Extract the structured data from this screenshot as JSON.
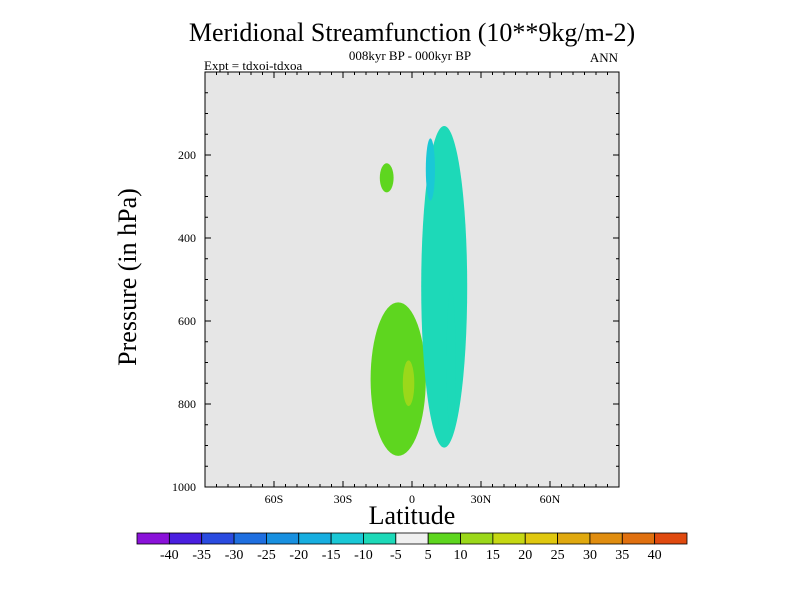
{
  "chart_data": {
    "type": "contour",
    "title": "Meridional Streamfunction (10**9kg/m-2)",
    "subtitle_center": "008kyr BP - 000kyr BP",
    "subtitle_left": "Expt = tdxoi-tdxoa",
    "subtitle_right": "ANN",
    "xlabel": "Latitude",
    "ylabel": "Pressure (in hPa)",
    "xlim": [
      -90,
      90
    ],
    "ylim": [
      1000,
      0
    ],
    "x_ticks": [
      {
        "value": -60,
        "label": "60S"
      },
      {
        "value": -30,
        "label": "30S"
      },
      {
        "value": 0,
        "label": "0"
      },
      {
        "value": 30,
        "label": "30N"
      },
      {
        "value": 60,
        "label": "60N"
      }
    ],
    "y_ticks": [
      {
        "value": 200,
        "label": "200"
      },
      {
        "value": 400,
        "label": "400"
      },
      {
        "value": 600,
        "label": "600"
      },
      {
        "value": 800,
        "label": "800"
      },
      {
        "value": 1000,
        "label": "1000"
      }
    ],
    "background_color": "#e6e6e6",
    "colorbar": {
      "labels": [
        "-40",
        "-35",
        "-30",
        "-25",
        "-20",
        "-15",
        "-10",
        "-5",
        "5",
        "10",
        "15",
        "20",
        "25",
        "30",
        "35",
        "40"
      ],
      "colors": [
        "#8a12d9",
        "#4a1fe0",
        "#2a4be0",
        "#1f6fe0",
        "#1890e0",
        "#17aee0",
        "#1ac8d6",
        "#1dd9b8",
        "#f0f0f0",
        "#5ed61f",
        "#9bd81a",
        "#c6d813",
        "#e0c80f",
        "#e0a90f",
        "#e08d0f",
        "#e0700f",
        "#e04a0f"
      ]
    },
    "regions": [
      {
        "level": "5 to 10",
        "color": "#5ed61f",
        "lat_range": [
          -18,
          6
        ],
        "p_range": [
          555,
          925
        ],
        "description": "large positive cell"
      },
      {
        "level": "10 to 15",
        "color": "#9bd81a",
        "lat_range": [
          -4,
          1
        ],
        "p_range": [
          695,
          805
        ],
        "description": "inner maximum"
      },
      {
        "level": "5 to 10",
        "color": "#5ed61f",
        "lat_range": [
          -14,
          -8
        ],
        "p_range": [
          220,
          290
        ],
        "description": "small positive blob"
      },
      {
        "level": "-10 to -5",
        "color": "#1dd9b8",
        "lat_range": [
          4,
          24
        ],
        "p_range": [
          130,
          905
        ],
        "description": "negative band"
      },
      {
        "level": "-15 to -10",
        "color": "#1ac8d6",
        "lat_range": [
          6,
          10
        ],
        "p_range": [
          160,
          310
        ],
        "description": "core of negative band"
      },
      {
        "level": "-10 to -5",
        "color": "#1dd9b8",
        "lat_range": [
          15,
          19
        ],
        "p_range": [
          525,
          870
        ],
        "description": "separate negative lobe"
      }
    ]
  }
}
